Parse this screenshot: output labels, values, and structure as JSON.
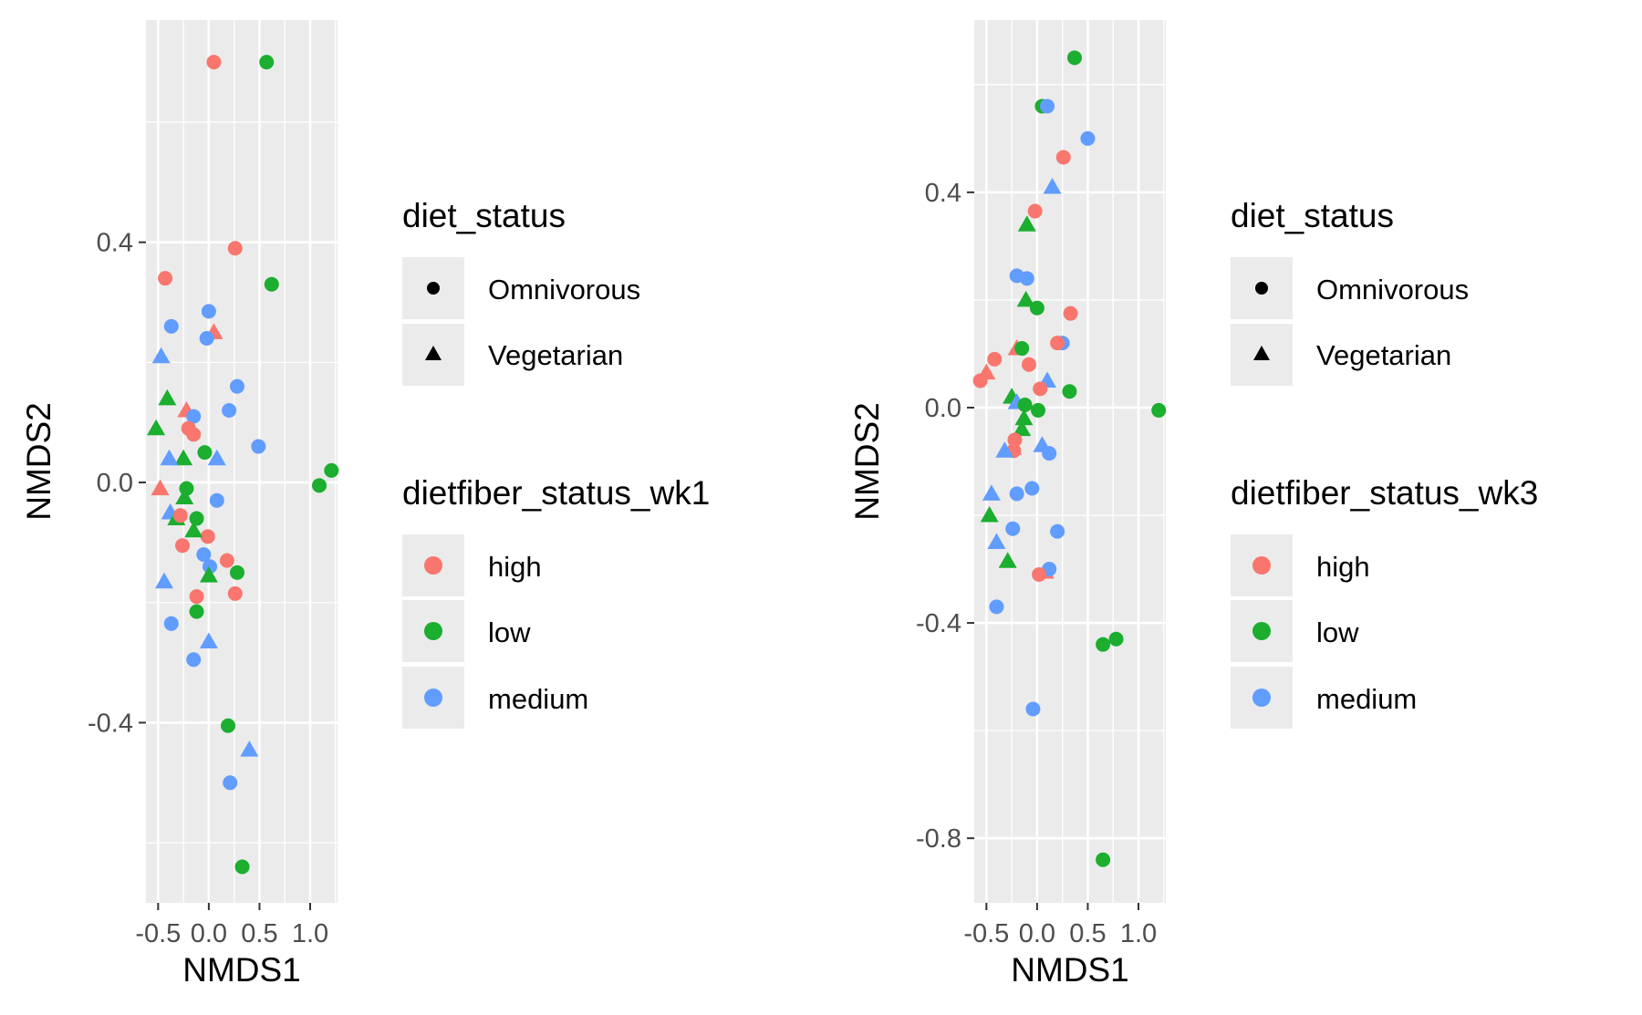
{
  "colors": {
    "high": "#F8766D",
    "low": "#1BAE2F",
    "medium": "#619CFF",
    "panel_bg": "#EBEBEB",
    "grid": "#FFFFFF",
    "axis_text": "#4D4D4D",
    "title_text": "#000000"
  },
  "chart_data": [
    {
      "type": "scatter",
      "xlabel": "NMDS1",
      "ylabel": "NMDS2",
      "xlim": [
        -0.62,
        1.27
      ],
      "ylim": [
        -0.7,
        0.77
      ],
      "x_ticks": [
        -0.5,
        0.0,
        0.5,
        1.0
      ],
      "x_tick_labels": [
        "-0.5",
        "0.0",
        "0.5",
        "1.0"
      ],
      "y_ticks": [
        -0.4,
        0.0,
        0.4
      ],
      "y_tick_labels": [
        "-0.4",
        "0.0",
        "0.4"
      ],
      "grid": true,
      "legend_placement": "right",
      "legends": [
        {
          "title": "diet_status",
          "kind": "shape",
          "entries": [
            {
              "label": "Omnivorous",
              "shape": "circle"
            },
            {
              "label": "Vegetarian",
              "shape": "triangle"
            }
          ]
        },
        {
          "title": "dietfiber_status_wk1",
          "kind": "color",
          "entries": [
            {
              "label": "high",
              "color_key": "high"
            },
            {
              "label": "low",
              "color_key": "low"
            },
            {
              "label": "medium",
              "color_key": "medium"
            }
          ]
        }
      ],
      "points": [
        {
          "x": 0.05,
          "y": 0.7,
          "shape": "circle",
          "group": "high"
        },
        {
          "x": 0.57,
          "y": 0.7,
          "shape": "circle",
          "group": "low"
        },
        {
          "x": 0.26,
          "y": 0.39,
          "shape": "circle",
          "group": "high"
        },
        {
          "x": -0.43,
          "y": 0.34,
          "shape": "circle",
          "group": "high"
        },
        {
          "x": 0.62,
          "y": 0.33,
          "shape": "circle",
          "group": "low"
        },
        {
          "x": 0.0,
          "y": 0.285,
          "shape": "circle",
          "group": "medium"
        },
        {
          "x": -0.37,
          "y": 0.26,
          "shape": "circle",
          "group": "medium"
        },
        {
          "x": 0.05,
          "y": 0.25,
          "shape": "triangle",
          "group": "high"
        },
        {
          "x": -0.02,
          "y": 0.24,
          "shape": "circle",
          "group": "medium"
        },
        {
          "x": -0.47,
          "y": 0.21,
          "shape": "triangle",
          "group": "medium"
        },
        {
          "x": 0.28,
          "y": 0.16,
          "shape": "circle",
          "group": "medium"
        },
        {
          "x": -0.41,
          "y": 0.14,
          "shape": "triangle",
          "group": "low"
        },
        {
          "x": -0.22,
          "y": 0.12,
          "shape": "triangle",
          "group": "high"
        },
        {
          "x": 0.2,
          "y": 0.12,
          "shape": "circle",
          "group": "medium"
        },
        {
          "x": -0.15,
          "y": 0.11,
          "shape": "circle",
          "group": "medium"
        },
        {
          "x": -0.52,
          "y": 0.09,
          "shape": "triangle",
          "group": "low"
        },
        {
          "x": -0.2,
          "y": 0.09,
          "shape": "circle",
          "group": "high"
        },
        {
          "x": -0.15,
          "y": 0.08,
          "shape": "circle",
          "group": "high"
        },
        {
          "x": 0.49,
          "y": 0.06,
          "shape": "circle",
          "group": "medium"
        },
        {
          "x": -0.04,
          "y": 0.05,
          "shape": "circle",
          "group": "low"
        },
        {
          "x": -0.25,
          "y": 0.04,
          "shape": "triangle",
          "group": "low"
        },
        {
          "x": 0.08,
          "y": 0.04,
          "shape": "triangle",
          "group": "medium"
        },
        {
          "x": -0.39,
          "y": 0.04,
          "shape": "triangle",
          "group": "medium"
        },
        {
          "x": 1.21,
          "y": 0.02,
          "shape": "circle",
          "group": "low"
        },
        {
          "x": 1.09,
          "y": -0.005,
          "shape": "circle",
          "group": "low"
        },
        {
          "x": -0.48,
          "y": -0.01,
          "shape": "triangle",
          "group": "high"
        },
        {
          "x": -0.22,
          "y": -0.01,
          "shape": "circle",
          "group": "low"
        },
        {
          "x": -0.24,
          "y": -0.025,
          "shape": "triangle",
          "group": "low"
        },
        {
          "x": 0.08,
          "y": -0.03,
          "shape": "circle",
          "group": "medium"
        },
        {
          "x": -0.38,
          "y": -0.05,
          "shape": "triangle",
          "group": "medium"
        },
        {
          "x": -0.32,
          "y": -0.06,
          "shape": "triangle",
          "group": "low"
        },
        {
          "x": -0.28,
          "y": -0.055,
          "shape": "circle",
          "group": "high"
        },
        {
          "x": -0.12,
          "y": -0.06,
          "shape": "circle",
          "group": "low"
        },
        {
          "x": -0.01,
          "y": -0.09,
          "shape": "circle",
          "group": "high"
        },
        {
          "x": -0.15,
          "y": -0.08,
          "shape": "triangle",
          "group": "low"
        },
        {
          "x": -0.26,
          "y": -0.105,
          "shape": "circle",
          "group": "high"
        },
        {
          "x": -0.05,
          "y": -0.12,
          "shape": "circle",
          "group": "medium"
        },
        {
          "x": 0.18,
          "y": -0.13,
          "shape": "circle",
          "group": "high"
        },
        {
          "x": 0.01,
          "y": -0.14,
          "shape": "circle",
          "group": "medium"
        },
        {
          "x": 0.28,
          "y": -0.15,
          "shape": "circle",
          "group": "low"
        },
        {
          "x": 0.0,
          "y": -0.155,
          "shape": "triangle",
          "group": "low"
        },
        {
          "x": -0.44,
          "y": -0.165,
          "shape": "triangle",
          "group": "medium"
        },
        {
          "x": 0.26,
          "y": -0.185,
          "shape": "circle",
          "group": "high"
        },
        {
          "x": -0.12,
          "y": -0.19,
          "shape": "circle",
          "group": "high"
        },
        {
          "x": -0.12,
          "y": -0.215,
          "shape": "circle",
          "group": "low"
        },
        {
          "x": -0.37,
          "y": -0.235,
          "shape": "circle",
          "group": "medium"
        },
        {
          "x": 0.0,
          "y": -0.265,
          "shape": "triangle",
          "group": "medium"
        },
        {
          "x": -0.15,
          "y": -0.295,
          "shape": "circle",
          "group": "medium"
        },
        {
          "x": 0.19,
          "y": -0.405,
          "shape": "circle",
          "group": "low"
        },
        {
          "x": 0.4,
          "y": -0.445,
          "shape": "triangle",
          "group": "medium"
        },
        {
          "x": 0.21,
          "y": -0.5,
          "shape": "circle",
          "group": "medium"
        },
        {
          "x": 0.33,
          "y": -0.64,
          "shape": "circle",
          "group": "low"
        }
      ]
    },
    {
      "type": "scatter",
      "xlabel": "NMDS1",
      "ylabel": "NMDS2",
      "xlim": [
        -0.62,
        1.27
      ],
      "ylim": [
        -0.92,
        0.72
      ],
      "x_ticks": [
        -0.5,
        0.0,
        0.5,
        1.0
      ],
      "x_tick_labels": [
        "-0.5",
        "0.0",
        "0.5",
        "1.0"
      ],
      "y_ticks": [
        -0.8,
        -0.4,
        0.0,
        0.4
      ],
      "y_tick_labels": [
        "-0.8",
        "-0.4",
        "0.0",
        "0.4"
      ],
      "grid": true,
      "legend_placement": "right",
      "legends": [
        {
          "title": "diet_status",
          "kind": "shape",
          "entries": [
            {
              "label": "Omnivorous",
              "shape": "circle"
            },
            {
              "label": "Vegetarian",
              "shape": "triangle"
            }
          ]
        },
        {
          "title": "dietfiber_status_wk3",
          "kind": "color",
          "entries": [
            {
              "label": "high",
              "color_key": "high"
            },
            {
              "label": "low",
              "color_key": "low"
            },
            {
              "label": "medium",
              "color_key": "medium"
            }
          ]
        }
      ],
      "points": [
        {
          "x": 0.37,
          "y": 0.65,
          "shape": "circle",
          "group": "low"
        },
        {
          "x": 0.05,
          "y": 0.56,
          "shape": "circle",
          "group": "low"
        },
        {
          "x": 0.1,
          "y": 0.56,
          "shape": "circle",
          "group": "medium"
        },
        {
          "x": 0.5,
          "y": 0.5,
          "shape": "circle",
          "group": "medium"
        },
        {
          "x": 0.26,
          "y": 0.465,
          "shape": "circle",
          "group": "high"
        },
        {
          "x": 0.15,
          "y": 0.41,
          "shape": "triangle",
          "group": "medium"
        },
        {
          "x": -0.02,
          "y": 0.365,
          "shape": "circle",
          "group": "high"
        },
        {
          "x": -0.1,
          "y": 0.34,
          "shape": "triangle",
          "group": "low"
        },
        {
          "x": -0.2,
          "y": 0.245,
          "shape": "circle",
          "group": "medium"
        },
        {
          "x": -0.1,
          "y": 0.24,
          "shape": "circle",
          "group": "medium"
        },
        {
          "x": -0.11,
          "y": 0.2,
          "shape": "triangle",
          "group": "low"
        },
        {
          "x": 0.0,
          "y": 0.185,
          "shape": "circle",
          "group": "low"
        },
        {
          "x": 0.33,
          "y": 0.175,
          "shape": "circle",
          "group": "high"
        },
        {
          "x": 0.25,
          "y": 0.12,
          "shape": "circle",
          "group": "medium"
        },
        {
          "x": 0.2,
          "y": 0.12,
          "shape": "circle",
          "group": "high"
        },
        {
          "x": -0.2,
          "y": 0.11,
          "shape": "triangle",
          "group": "high"
        },
        {
          "x": -0.15,
          "y": 0.11,
          "shape": "circle",
          "group": "low"
        },
        {
          "x": -0.42,
          "y": 0.09,
          "shape": "circle",
          "group": "high"
        },
        {
          "x": -0.08,
          "y": 0.08,
          "shape": "circle",
          "group": "high"
        },
        {
          "x": -0.5,
          "y": 0.065,
          "shape": "triangle",
          "group": "high"
        },
        {
          "x": 0.1,
          "y": 0.05,
          "shape": "triangle",
          "group": "medium"
        },
        {
          "x": -0.56,
          "y": 0.05,
          "shape": "circle",
          "group": "high"
        },
        {
          "x": 0.32,
          "y": 0.03,
          "shape": "circle",
          "group": "low"
        },
        {
          "x": 0.03,
          "y": 0.035,
          "shape": "circle",
          "group": "high"
        },
        {
          "x": -0.25,
          "y": 0.02,
          "shape": "triangle",
          "group": "low"
        },
        {
          "x": -0.2,
          "y": 0.01,
          "shape": "triangle",
          "group": "medium"
        },
        {
          "x": -0.12,
          "y": 0.005,
          "shape": "circle",
          "group": "low"
        },
        {
          "x": 1.2,
          "y": -0.005,
          "shape": "circle",
          "group": "low"
        },
        {
          "x": 0.01,
          "y": -0.005,
          "shape": "circle",
          "group": "low"
        },
        {
          "x": -0.13,
          "y": -0.02,
          "shape": "triangle",
          "group": "low"
        },
        {
          "x": -0.15,
          "y": -0.04,
          "shape": "triangle",
          "group": "low"
        },
        {
          "x": -0.22,
          "y": -0.06,
          "shape": "circle",
          "group": "high"
        },
        {
          "x": 0.05,
          "y": -0.07,
          "shape": "triangle",
          "group": "medium"
        },
        {
          "x": -0.24,
          "y": -0.075,
          "shape": "triangle",
          "group": "high"
        },
        {
          "x": -0.23,
          "y": -0.08,
          "shape": "circle",
          "group": "high"
        },
        {
          "x": 0.12,
          "y": -0.085,
          "shape": "circle",
          "group": "medium"
        },
        {
          "x": -0.32,
          "y": -0.08,
          "shape": "triangle",
          "group": "medium"
        },
        {
          "x": -0.05,
          "y": -0.15,
          "shape": "circle",
          "group": "medium"
        },
        {
          "x": -0.2,
          "y": -0.16,
          "shape": "circle",
          "group": "medium"
        },
        {
          "x": -0.45,
          "y": -0.16,
          "shape": "triangle",
          "group": "medium"
        },
        {
          "x": -0.47,
          "y": -0.2,
          "shape": "triangle",
          "group": "low"
        },
        {
          "x": -0.24,
          "y": -0.225,
          "shape": "circle",
          "group": "medium"
        },
        {
          "x": 0.2,
          "y": -0.23,
          "shape": "circle",
          "group": "medium"
        },
        {
          "x": -0.4,
          "y": -0.25,
          "shape": "triangle",
          "group": "medium"
        },
        {
          "x": -0.29,
          "y": -0.285,
          "shape": "triangle",
          "group": "low"
        },
        {
          "x": 0.08,
          "y": -0.305,
          "shape": "triangle",
          "group": "high"
        },
        {
          "x": 0.12,
          "y": -0.3,
          "shape": "circle",
          "group": "medium"
        },
        {
          "x": 0.02,
          "y": -0.31,
          "shape": "circle",
          "group": "high"
        },
        {
          "x": -0.4,
          "y": -0.37,
          "shape": "circle",
          "group": "medium"
        },
        {
          "x": 0.78,
          "y": -0.43,
          "shape": "circle",
          "group": "low"
        },
        {
          "x": 0.65,
          "y": -0.44,
          "shape": "circle",
          "group": "low"
        },
        {
          "x": -0.04,
          "y": -0.56,
          "shape": "circle",
          "group": "medium"
        },
        {
          "x": 0.65,
          "y": -0.84,
          "shape": "circle",
          "group": "low"
        }
      ]
    }
  ]
}
